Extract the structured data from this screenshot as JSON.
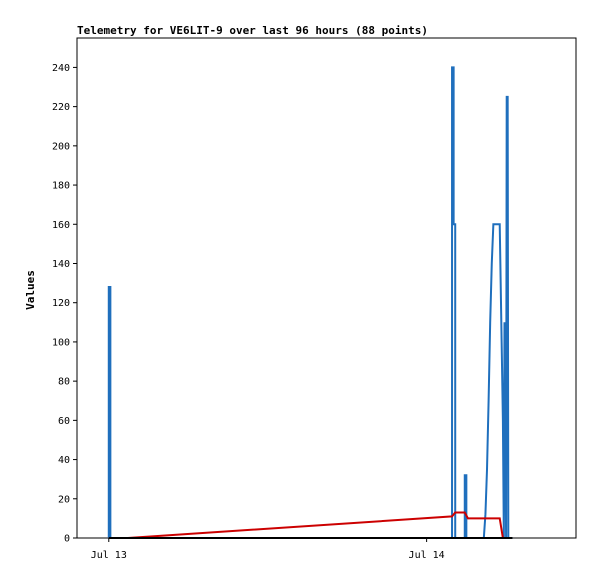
{
  "chart_data": {
    "type": "line",
    "title": "Telemetry for VE6LIT-9 over last 96 hours (88 points)",
    "xlabel": "",
    "ylabel": "Values",
    "ylim": [
      0,
      255
    ],
    "yticks": [
      0,
      20,
      40,
      60,
      80,
      100,
      120,
      140,
      160,
      180,
      200,
      220,
      240
    ],
    "xlim": [
      -0.1,
      1.47
    ],
    "xticks": [
      {
        "label": "Jul 13",
        "x": 0
      },
      {
        "label": "Jul 14",
        "x": 1
      }
    ],
    "grid": false,
    "series": [
      {
        "color": "#1f6fbd",
        "points": [
          [
            0.0,
            0
          ],
          [
            0.0,
            128
          ],
          [
            0.005,
            128
          ],
          [
            0.005,
            0
          ],
          [
            0.6,
            0
          ],
          [
            1.08,
            0
          ],
          [
            1.08,
            240
          ],
          [
            1.085,
            240
          ],
          [
            1.085,
            160
          ],
          [
            1.09,
            160
          ],
          [
            1.09,
            0
          ],
          [
            1.12,
            0
          ],
          [
            1.12,
            32
          ],
          [
            1.125,
            32
          ],
          [
            1.125,
            0
          ],
          [
            1.18,
            0
          ],
          [
            1.185,
            12
          ],
          [
            1.19,
            35
          ],
          [
            1.195,
            70
          ],
          [
            1.2,
            110
          ],
          [
            1.205,
            140
          ],
          [
            1.21,
            160
          ],
          [
            1.23,
            160
          ],
          [
            1.232,
            140
          ],
          [
            1.236,
            100
          ],
          [
            1.24,
            60
          ],
          [
            1.242,
            20
          ],
          [
            1.243,
            0
          ],
          [
            1.245,
            110
          ],
          [
            1.248,
            60
          ],
          [
            1.25,
            0
          ],
          [
            1.252,
            225
          ],
          [
            1.255,
            225
          ],
          [
            1.257,
            0
          ],
          [
            1.27,
            0
          ]
        ]
      },
      {
        "color": "#cc0000",
        "points": [
          [
            0.0,
            0
          ],
          [
            0.06,
            0
          ],
          [
            1.08,
            11
          ],
          [
            1.09,
            13
          ],
          [
            1.12,
            13
          ],
          [
            1.13,
            10
          ],
          [
            1.23,
            10
          ],
          [
            1.24,
            0
          ],
          [
            1.26,
            0
          ]
        ]
      },
      {
        "color": "#000000",
        "points": [
          [
            0.0,
            0
          ],
          [
            1.27,
            0
          ]
        ]
      }
    ]
  }
}
